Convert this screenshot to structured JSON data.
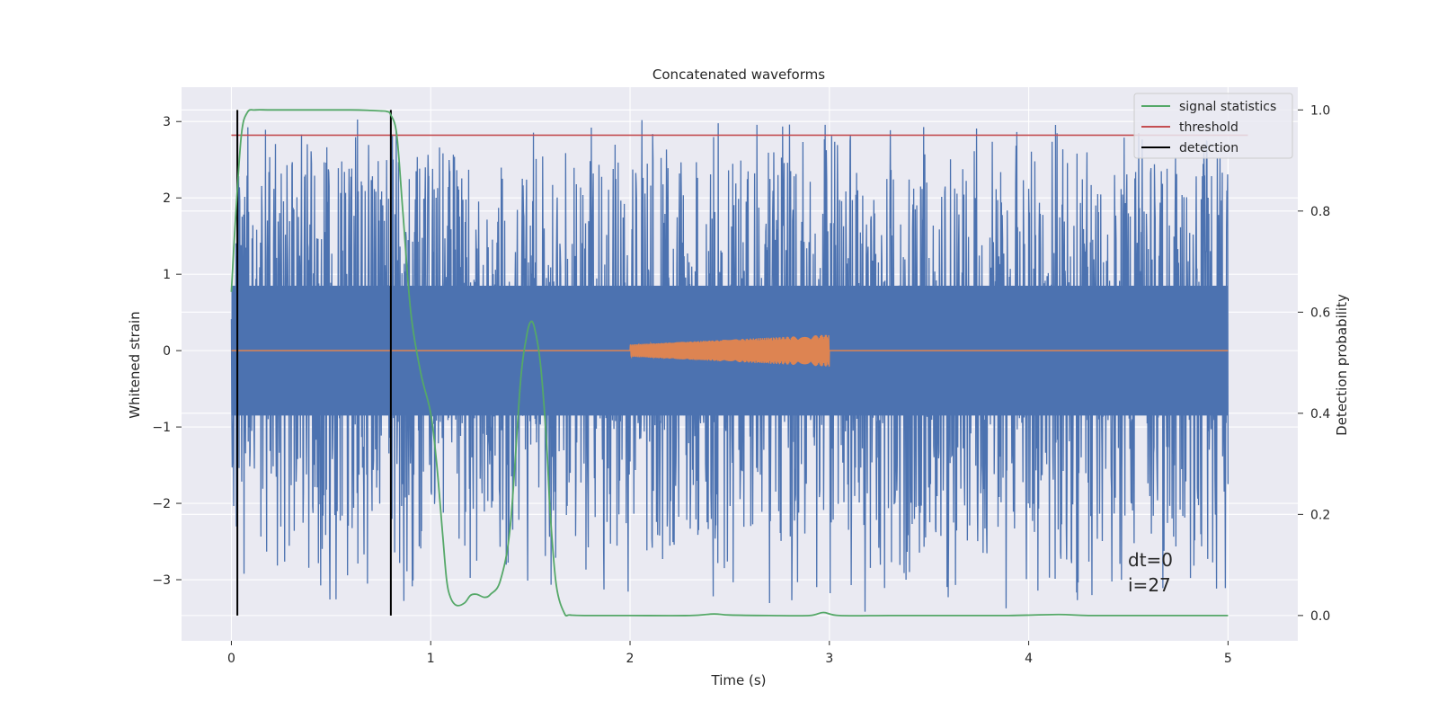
{
  "chart_data": {
    "type": "line",
    "title": "Concatenated waveforms",
    "xlabel": "Time (s)",
    "ylabel": "Whitened strain",
    "ylabel_right": "Detection probability",
    "xlim": [
      -0.25,
      5.35
    ],
    "ylim": [
      -3.8,
      3.45
    ],
    "ylim_right": [
      -0.05,
      1.045
    ],
    "x_ticks": [
      0,
      1,
      2,
      3,
      4,
      5
    ],
    "x_tick_labels": [
      "0",
      "1",
      "2",
      "3",
      "4",
      "5"
    ],
    "y_ticks": [
      -3,
      -2,
      -1,
      0,
      1,
      2,
      3
    ],
    "y_tick_labels": [
      "−3",
      "−2",
      "−1",
      "0",
      "1",
      "2",
      "3"
    ],
    "y_right_ticks": [
      0.0,
      0.2,
      0.4,
      0.6,
      0.8,
      1.0
    ],
    "y_right_tick_labels": [
      "0.0",
      "0.2",
      "0.4",
      "0.6",
      "0.8",
      "1.0"
    ],
    "grid": true,
    "legend_placement": "top-right",
    "annotations": [
      "dt=0",
      "i=27"
    ],
    "colors": {
      "background": "#eaeaf2",
      "grid": "#ffffff",
      "strain": "#4c72b0",
      "template": "#dd8452",
      "signal_statistics": "#55a868",
      "threshold": "#c44e52",
      "detection": "#000000"
    },
    "series": [
      {
        "name": "",
        "axis": "left",
        "kind": "noise",
        "x_range": [
          0,
          5
        ],
        "core_band": [
          -0.85,
          0.85
        ],
        "peak_max": 3.15,
        "peak_min": -3.5
      },
      {
        "name": "",
        "axis": "left",
        "kind": "chirp",
        "x_range": [
          2,
          3
        ],
        "amplitude_range": [
          0.08,
          0.21
        ]
      },
      {
        "name": "signal statistics",
        "axis": "right",
        "x": [
          0,
          0.02,
          0.05,
          0.08,
          0.12,
          0.2,
          0.4,
          0.6,
          0.7,
          0.75,
          0.78,
          0.8,
          0.83,
          0.86,
          0.9,
          0.95,
          1.0,
          1.03,
          1.06,
          1.08,
          1.1,
          1.13,
          1.17,
          1.2,
          1.23,
          1.27,
          1.3,
          1.35,
          1.4,
          1.45,
          1.48,
          1.5,
          1.52,
          1.55,
          1.58,
          1.6,
          1.63,
          1.67,
          1.7,
          1.8,
          2.0,
          2.3,
          2.42,
          2.5,
          2.7,
          2.9,
          2.97,
          3.05,
          3.3,
          3.6,
          3.9,
          4.15,
          4.3,
          4.6,
          5.0
        ],
        "y": [
          0.64,
          0.78,
          0.95,
          0.995,
          1.0,
          1.0,
          1.0,
          1.0,
          0.999,
          0.998,
          0.997,
          0.99,
          0.95,
          0.8,
          0.6,
          0.48,
          0.4,
          0.3,
          0.16,
          0.07,
          0.035,
          0.02,
          0.025,
          0.04,
          0.042,
          0.036,
          0.042,
          0.07,
          0.18,
          0.46,
          0.55,
          0.58,
          0.57,
          0.5,
          0.35,
          0.2,
          0.06,
          0.005,
          0.001,
          0.0,
          0.0,
          0.0,
          0.003,
          0.001,
          0.0,
          0.0,
          0.006,
          0.0,
          0.0,
          0.0,
          0.0,
          0.002,
          0.0,
          0.0,
          0.0
        ]
      },
      {
        "name": "threshold",
        "axis": "right",
        "x": [
          0,
          5.1
        ],
        "y": [
          0.95,
          0.95
        ]
      },
      {
        "name": "detection",
        "axis": "right",
        "kind": "vertical_lines",
        "x": [
          0.03,
          0.8
        ],
        "y_range": [
          0.0,
          1.0
        ]
      }
    ]
  }
}
